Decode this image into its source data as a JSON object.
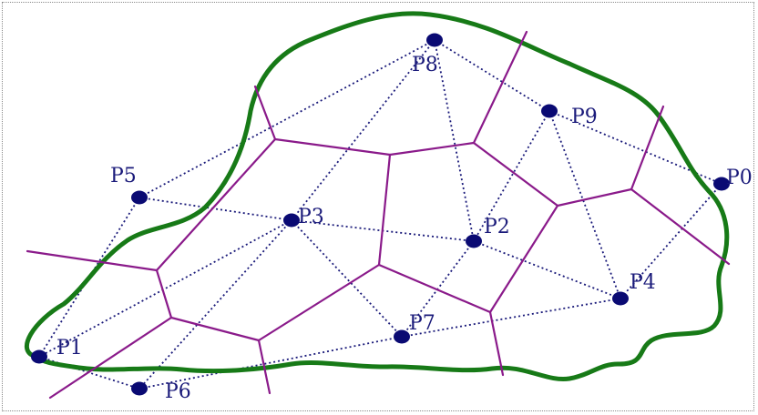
{
  "colors": {
    "boundary": "#177a17",
    "voronoi": "#8a1a8a",
    "delaunay": "#1a1a7a",
    "point": "#0a0a73",
    "label": "#1a1a7a"
  },
  "points": [
    {
      "label": "P0"
    },
    {
      "label": "P1"
    },
    {
      "label": "P2"
    },
    {
      "label": "P3"
    },
    {
      "label": "P4"
    },
    {
      "label": "P5"
    },
    {
      "label": "P6"
    },
    {
      "label": "P7"
    },
    {
      "label": "P8"
    },
    {
      "label": "P9"
    }
  ],
  "delaunay_edges": [
    [
      "P8",
      "P5"
    ],
    [
      "P8",
      "P3"
    ],
    [
      "P8",
      "P2"
    ],
    [
      "P8",
      "P9"
    ],
    [
      "P9",
      "P0"
    ],
    [
      "P9",
      "P2"
    ],
    [
      "P9",
      "P4"
    ],
    [
      "P0",
      "P4"
    ],
    [
      "P5",
      "P3"
    ],
    [
      "P5",
      "P1"
    ],
    [
      "P3",
      "P2"
    ],
    [
      "P3",
      "P1"
    ],
    [
      "P3",
      "P6"
    ],
    [
      "P3",
      "P7"
    ],
    [
      "P2",
      "P4"
    ],
    [
      "P2",
      "P7"
    ],
    [
      "P1",
      "P6"
    ],
    [
      "P6",
      "P7"
    ],
    [
      "P7",
      "P4"
    ]
  ]
}
